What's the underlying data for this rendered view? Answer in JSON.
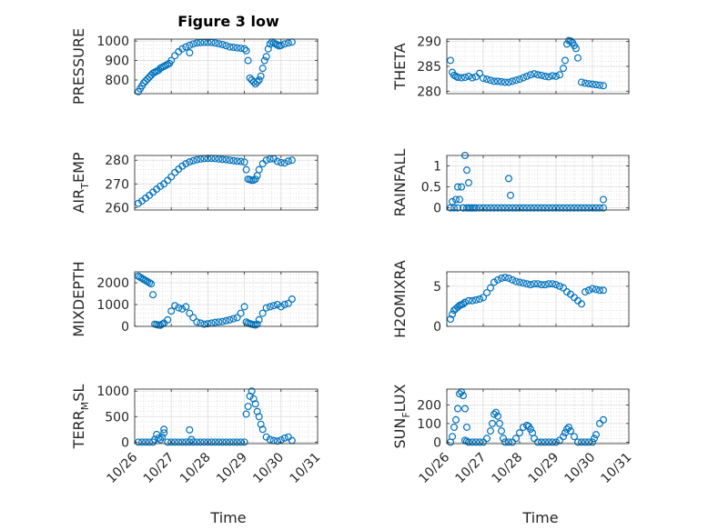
{
  "figure_title": "Figure 3 low",
  "marker_color": "#0072BD",
  "x_tick_labels": [
    "10/26",
    "10/27",
    "10/28",
    "10/29",
    "10/30",
    "10/31"
  ],
  "chart_data": [
    {
      "type": "scatter",
      "ylabel": "PRESSURE",
      "title": "Figure 3 low",
      "xlabel": "",
      "xlim": [
        0,
        5
      ],
      "ylim": [
        730,
        1010
      ],
      "yticks": [
        800,
        900,
        1000
      ],
      "ytick_labels": [
        "800",
        "900",
        "1000"
      ],
      "grid": true,
      "x": [
        0.1,
        0.15,
        0.2,
        0.25,
        0.3,
        0.35,
        0.4,
        0.45,
        0.5,
        0.55,
        0.6,
        0.65,
        0.7,
        0.75,
        0.8,
        0.85,
        0.9,
        0.95,
        1.0,
        1.1,
        1.2,
        1.3,
        1.4,
        1.5,
        1.6,
        1.7,
        1.8,
        1.9,
        2.0,
        2.1,
        2.2,
        2.3,
        2.4,
        2.5,
        2.6,
        2.7,
        2.8,
        2.9,
        3.0,
        3.05,
        3.1,
        3.15,
        3.2,
        3.25,
        3.3,
        3.35,
        3.4,
        3.45,
        3.5,
        3.55,
        3.6,
        3.65,
        3.7,
        3.75,
        3.8,
        3.85,
        3.9,
        3.95,
        4.0,
        4.1,
        4.2,
        4.3,
        1.5
      ],
      "y": [
        740,
        755,
        770,
        785,
        795,
        805,
        815,
        825,
        835,
        840,
        845,
        850,
        860,
        865,
        870,
        875,
        880,
        885,
        900,
        925,
        945,
        960,
        970,
        978,
        985,
        990,
        992,
        993,
        993,
        993,
        990,
        986,
        982,
        976,
        970,
        968,
        965,
        963,
        960,
        950,
        900,
        810,
        800,
        790,
        780,
        790,
        800,
        820,
        860,
        900,
        920,
        960,
        985,
        995,
        990,
        985,
        980,
        975,
        978,
        985,
        990,
        995,
        940
      ]
    },
    {
      "type": "scatter",
      "ylabel": "THETA",
      "title": "",
      "xlabel": "",
      "xlim": [
        0,
        5
      ],
      "ylim": [
        279.5,
        290.5
      ],
      "yticks": [
        280,
        285,
        290
      ],
      "ytick_labels": [
        "280",
        "285",
        "290"
      ],
      "grid": true,
      "x": [
        0.1,
        0.15,
        0.2,
        0.25,
        0.3,
        0.4,
        0.5,
        0.6,
        0.7,
        0.8,
        0.9,
        1.0,
        1.1,
        1.2,
        1.3,
        1.4,
        1.5,
        1.6,
        1.7,
        1.8,
        1.9,
        2.0,
        2.1,
        2.2,
        2.3,
        2.4,
        2.5,
        2.6,
        2.7,
        2.8,
        2.9,
        3.0,
        3.1,
        3.2,
        3.25,
        3.3,
        3.35,
        3.4,
        3.45,
        3.5,
        3.55,
        3.6,
        3.7,
        3.8,
        3.9,
        4.0,
        4.1,
        4.2,
        4.3
      ],
      "y": [
        286.2,
        283.8,
        283.2,
        283.0,
        282.8,
        282.7,
        282.8,
        283.0,
        282.7,
        282.9,
        283.6,
        282.6,
        282.4,
        282.2,
        282.0,
        282.0,
        281.9,
        281.8,
        281.8,
        282.0,
        282.2,
        282.4,
        282.7,
        283.0,
        283.3,
        283.5,
        283.3,
        283.2,
        283.0,
        282.9,
        283.1,
        283.0,
        283.3,
        284.6,
        286.2,
        289.5,
        290.2,
        290.1,
        289.8,
        289.2,
        288.6,
        286.7,
        281.8,
        281.6,
        281.5,
        281.4,
        281.3,
        281.2,
        281.1
      ]
    },
    {
      "type": "scatter",
      "ylabel": "AIR_TEMP",
      "title": "",
      "xlabel": "",
      "xlim": [
        0,
        5
      ],
      "ylim": [
        259,
        282
      ],
      "yticks": [
        260,
        270,
        280
      ],
      "ytick_labels": [
        "260",
        "270",
        "280"
      ],
      "grid": true,
      "x": [
        0.1,
        0.2,
        0.3,
        0.4,
        0.5,
        0.6,
        0.7,
        0.8,
        0.9,
        1.0,
        1.1,
        1.2,
        1.3,
        1.4,
        1.5,
        1.6,
        1.7,
        1.8,
        1.9,
        2.0,
        2.1,
        2.2,
        2.3,
        2.4,
        2.5,
        2.6,
        2.7,
        2.8,
        2.9,
        3.0,
        3.05,
        3.1,
        3.15,
        3.2,
        3.25,
        3.3,
        3.35,
        3.4,
        3.5,
        3.6,
        3.7,
        3.8,
        3.9,
        4.0,
        4.1,
        4.2,
        4.3
      ],
      "y": [
        261.8,
        262.8,
        264.0,
        265.2,
        266.5,
        267.8,
        269.0,
        270.0,
        271.5,
        273.0,
        274.8,
        276.2,
        277.5,
        278.5,
        279.3,
        279.8,
        280.2,
        280.5,
        280.7,
        280.8,
        280.8,
        280.7,
        280.5,
        280.3,
        280.2,
        280.0,
        279.8,
        279.6,
        279.5,
        279.2,
        276.0,
        272.0,
        271.8,
        271.5,
        271.6,
        272.0,
        273.5,
        276.0,
        278.5,
        280.0,
        280.5,
        280.6,
        279.5,
        279.0,
        278.8,
        279.6,
        280.0
      ]
    },
    {
      "type": "scatter",
      "ylabel": "RAINFALL",
      "title": "",
      "xlabel": "",
      "xlim": [
        0,
        5
      ],
      "ylim": [
        -0.05,
        1.25
      ],
      "yticks": [
        0,
        0.5,
        1
      ],
      "ytick_labels": [
        "0",
        "0.5",
        "1"
      ],
      "grid": true,
      "x": [
        0.1,
        0.15,
        0.2,
        0.25,
        0.3,
        0.35,
        0.4,
        0.45,
        0.5,
        0.55,
        0.6,
        0.65,
        0.7,
        0.75,
        0.8,
        0.9,
        1.0,
        1.1,
        1.2,
        1.3,
        1.4,
        1.5,
        1.6,
        1.7,
        1.8,
        1.9,
        2.0,
        2.1,
        2.2,
        2.3,
        2.4,
        2.5,
        2.6,
        2.7,
        2.8,
        2.9,
        3.0,
        3.1,
        3.2,
        3.3,
        3.4,
        3.5,
        3.6,
        3.7,
        3.8,
        3.9,
        4.0,
        4.1,
        4.2,
        4.3,
        0.3,
        0.45,
        0.55,
        0.6,
        1.7,
        1.75,
        4.3
      ],
      "y": [
        0,
        0.15,
        0,
        0.2,
        0.5,
        0.2,
        0.5,
        0,
        1.25,
        0.9,
        0.6,
        0,
        0,
        0,
        0,
        0,
        0,
        0,
        0,
        0,
        0,
        0,
        0,
        0,
        0,
        0,
        0,
        0,
        0,
        0,
        0,
        0,
        0,
        0,
        0,
        0,
        0,
        0,
        0,
        0,
        0,
        0,
        0,
        0,
        0,
        0,
        0,
        0,
        0,
        0,
        0,
        0,
        0,
        0,
        0.7,
        0.3,
        0.2
      ]
    },
    {
      "type": "scatter",
      "ylabel": "MIXDEPTH",
      "title": "",
      "xlabel": "",
      "xlim": [
        0,
        5
      ],
      "ylim": [
        0,
        2500
      ],
      "yticks": [
        0,
        1000,
        2000
      ],
      "ytick_labels": [
        "0",
        "1000",
        "2000"
      ],
      "grid": true,
      "x": [
        0.1,
        0.15,
        0.2,
        0.25,
        0.3,
        0.35,
        0.4,
        0.45,
        0.5,
        0.55,
        0.6,
        0.65,
        0.7,
        0.75,
        0.8,
        0.9,
        1.0,
        1.1,
        1.2,
        1.3,
        1.4,
        1.5,
        1.6,
        1.7,
        1.8,
        1.9,
        2.0,
        2.1,
        2.2,
        2.3,
        2.4,
        2.5,
        2.6,
        2.7,
        2.8,
        2.9,
        3.0,
        3.05,
        3.1,
        3.15,
        3.2,
        3.25,
        3.3,
        3.35,
        3.4,
        3.5,
        3.6,
        3.7,
        3.8,
        3.9,
        4.0,
        4.1,
        4.2,
        4.3
      ],
      "y": [
        2300,
        2250,
        2200,
        2150,
        2100,
        2050,
        2000,
        1950,
        1450,
        100,
        80,
        60,
        50,
        100,
        150,
        300,
        700,
        950,
        850,
        800,
        900,
        600,
        400,
        200,
        150,
        100,
        120,
        150,
        180,
        200,
        220,
        260,
        300,
        350,
        400,
        600,
        900,
        200,
        150,
        120,
        100,
        80,
        60,
        100,
        300,
        600,
        850,
        900,
        950,
        1000,
        900,
        1000,
        1050,
        1250
      ]
    },
    {
      "type": "scatter",
      "ylabel": "H2OMIXRA",
      "title": "",
      "xlabel": "",
      "xlim": [
        0,
        5
      ],
      "ylim": [
        0,
        6.8
      ],
      "yticks": [
        0,
        5
      ],
      "ytick_labels": [
        "0",
        "5"
      ],
      "grid": true,
      "x": [
        0.1,
        0.15,
        0.2,
        0.25,
        0.3,
        0.35,
        0.4,
        0.45,
        0.5,
        0.6,
        0.7,
        0.8,
        0.9,
        1.0,
        1.1,
        1.2,
        1.3,
        1.4,
        1.5,
        1.6,
        1.7,
        1.8,
        1.9,
        2.0,
        2.1,
        2.2,
        2.3,
        2.4,
        2.5,
        2.6,
        2.7,
        2.8,
        2.9,
        3.0,
        3.1,
        3.2,
        3.3,
        3.4,
        3.5,
        3.6,
        3.7,
        3.8,
        3.9,
        4.0,
        4.1,
        4.2,
        4.3
      ],
      "y": [
        0.9,
        1.5,
        2.0,
        2.2,
        2.4,
        2.6,
        2.7,
        2.8,
        3.0,
        3.2,
        3.2,
        3.3,
        3.4,
        3.6,
        4.2,
        4.8,
        5.5,
        5.8,
        6.0,
        6.1,
        6.0,
        5.8,
        5.6,
        5.5,
        5.4,
        5.3,
        5.2,
        5.3,
        5.3,
        5.2,
        5.2,
        5.3,
        5.3,
        5.2,
        5.0,
        4.8,
        4.3,
        4.0,
        3.6,
        3.2,
        2.8,
        4.3,
        4.5,
        4.7,
        4.6,
        4.5,
        4.5
      ]
    },
    {
      "type": "scatter",
      "ylabel": "TERR_MSL",
      "title": "",
      "xlabel": "",
      "xlim": [
        0,
        5
      ],
      "ylim": [
        -30,
        1040
      ],
      "yticks": [
        0,
        500,
        1000
      ],
      "ytick_labels": [
        "0",
        "500",
        "1000"
      ],
      "grid": true,
      "x": [
        0.1,
        0.2,
        0.3,
        0.4,
        0.5,
        0.55,
        0.6,
        0.65,
        0.7,
        0.75,
        0.8,
        0.9,
        1.0,
        1.1,
        1.2,
        1.3,
        1.4,
        1.5,
        1.6,
        1.7,
        1.8,
        1.9,
        2.0,
        2.1,
        2.2,
        2.3,
        2.4,
        2.5,
        2.6,
        2.7,
        2.8,
        2.9,
        3.0,
        3.05,
        3.1,
        3.15,
        3.2,
        3.25,
        3.3,
        3.35,
        3.4,
        3.45,
        3.5,
        3.6,
        3.7,
        3.8,
        3.9,
        4.0,
        4.1,
        4.2,
        4.3,
        0.8,
        1.5,
        1.55
      ],
      "y": [
        0,
        0,
        0,
        0,
        0,
        50,
        150,
        80,
        50,
        100,
        250,
        0,
        0,
        0,
        0,
        0,
        0,
        0,
        0,
        0,
        0,
        0,
        0,
        0,
        0,
        0,
        0,
        0,
        0,
        0,
        0,
        0,
        0,
        550,
        700,
        900,
        1000,
        850,
        750,
        600,
        500,
        350,
        250,
        100,
        50,
        30,
        20,
        40,
        80,
        100,
        30,
        180,
        240,
        50
      ]
    },
    {
      "type": "scatter",
      "ylabel": "SUN_FLUX",
      "title": "",
      "xlabel": "",
      "xlim": [
        0,
        5
      ],
      "ylim": [
        -8,
        285
      ],
      "yticks": [
        0,
        100,
        200
      ],
      "ytick_labels": [
        "0",
        "100",
        "200"
      ],
      "grid": true,
      "x": [
        0.1,
        0.15,
        0.2,
        0.25,
        0.3,
        0.35,
        0.4,
        0.45,
        0.5,
        0.55,
        0.6,
        0.7,
        0.8,
        0.9,
        1.0,
        1.1,
        1.2,
        1.25,
        1.3,
        1.35,
        1.4,
        1.45,
        1.5,
        1.55,
        1.6,
        1.7,
        1.8,
        1.9,
        2.0,
        2.1,
        2.2,
        2.25,
        2.3,
        2.35,
        2.4,
        2.5,
        2.6,
        2.7,
        2.8,
        2.9,
        3.0,
        3.1,
        3.2,
        3.25,
        3.3,
        3.35,
        3.4,
        3.5,
        3.6,
        3.7,
        3.8,
        3.9,
        4.0,
        4.05,
        4.1,
        4.2,
        4.3,
        0.5,
        0.55
      ],
      "y": [
        0,
        30,
        80,
        120,
        180,
        260,
        270,
        250,
        180,
        80,
        0,
        0,
        0,
        0,
        0,
        20,
        60,
        100,
        150,
        160,
        140,
        100,
        60,
        20,
        0,
        0,
        0,
        20,
        50,
        80,
        90,
        85,
        70,
        50,
        20,
        0,
        0,
        0,
        0,
        0,
        0,
        10,
        30,
        50,
        70,
        80,
        60,
        30,
        0,
        0,
        0,
        0,
        0,
        20,
        40,
        100,
        120,
        10,
        5
      ]
    }
  ]
}
